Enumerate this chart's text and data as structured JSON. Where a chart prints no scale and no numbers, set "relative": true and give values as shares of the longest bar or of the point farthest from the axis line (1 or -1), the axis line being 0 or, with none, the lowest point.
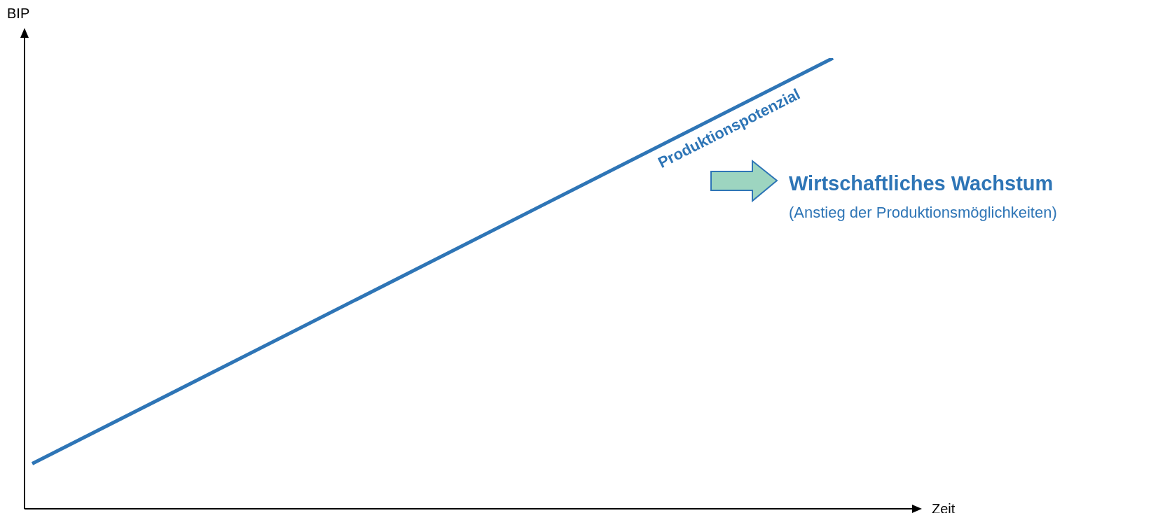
{
  "chart_data": {
    "type": "line",
    "relative": true,
    "xlabel": "Zeit",
    "ylabel": "BIP",
    "categories": [
      null,
      null
    ],
    "series": [
      {
        "name": "Produktionspotenzial",
        "color": "#2e75b6",
        "values": [
          0.1,
          1
        ]
      }
    ],
    "annotations": [
      "Wirtschaftliches Wachstum",
      "(Anstieg der Produktionsmöglichkeiten)"
    ],
    "marker": "none",
    "legend": false,
    "grid": false
  }
}
